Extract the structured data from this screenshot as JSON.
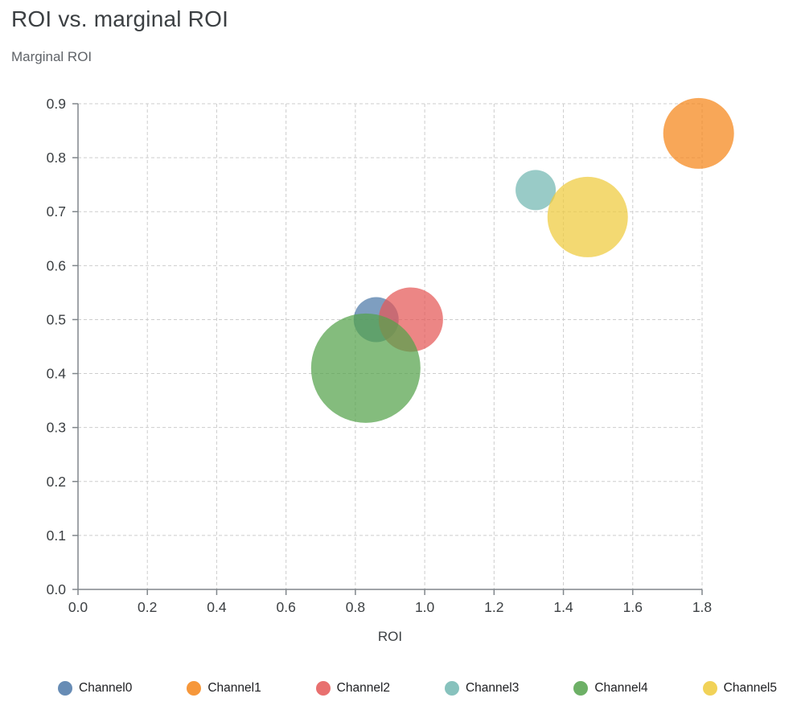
{
  "chart_data": {
    "type": "scatter",
    "title": "ROI vs. marginal ROI",
    "xlabel": "ROI",
    "ylabel": "Marginal ROI",
    "xlim": [
      0.0,
      1.8
    ],
    "ylim": [
      0.0,
      0.9
    ],
    "xticks": [
      0.0,
      0.2,
      0.4,
      0.6,
      0.8,
      1.0,
      1.2,
      1.4,
      1.6,
      1.8
    ],
    "yticks": [
      0.0,
      0.1,
      0.2,
      0.3,
      0.4,
      0.5,
      0.6,
      0.7,
      0.8,
      0.9
    ],
    "grid": "dashed",
    "legend_position": "bottom",
    "bubble_opacity": 0.72,
    "series": [
      {
        "name": "Channel0",
        "color": "#4c78a8",
        "x": 0.86,
        "y": 0.5,
        "radius_px": 28
      },
      {
        "name": "Channel1",
        "color": "#f58518",
        "x": 1.79,
        "y": 0.845,
        "radius_px": 44
      },
      {
        "name": "Channel2",
        "color": "#e45756",
        "x": 0.96,
        "y": 0.5,
        "radius_px": 40
      },
      {
        "name": "Channel3",
        "color": "#72b7b2",
        "x": 1.32,
        "y": 0.74,
        "radius_px": 25
      },
      {
        "name": "Channel4",
        "color": "#54a24b",
        "x": 0.83,
        "y": 0.41,
        "radius_px": 68
      },
      {
        "name": "Channel5",
        "color": "#eeca3b",
        "x": 1.47,
        "y": 0.69,
        "radius_px": 50
      }
    ]
  },
  "style": {
    "grid_color": "#cdcdcd",
    "axis_color": "#80868b",
    "tick_label_color": "#3c4043"
  }
}
